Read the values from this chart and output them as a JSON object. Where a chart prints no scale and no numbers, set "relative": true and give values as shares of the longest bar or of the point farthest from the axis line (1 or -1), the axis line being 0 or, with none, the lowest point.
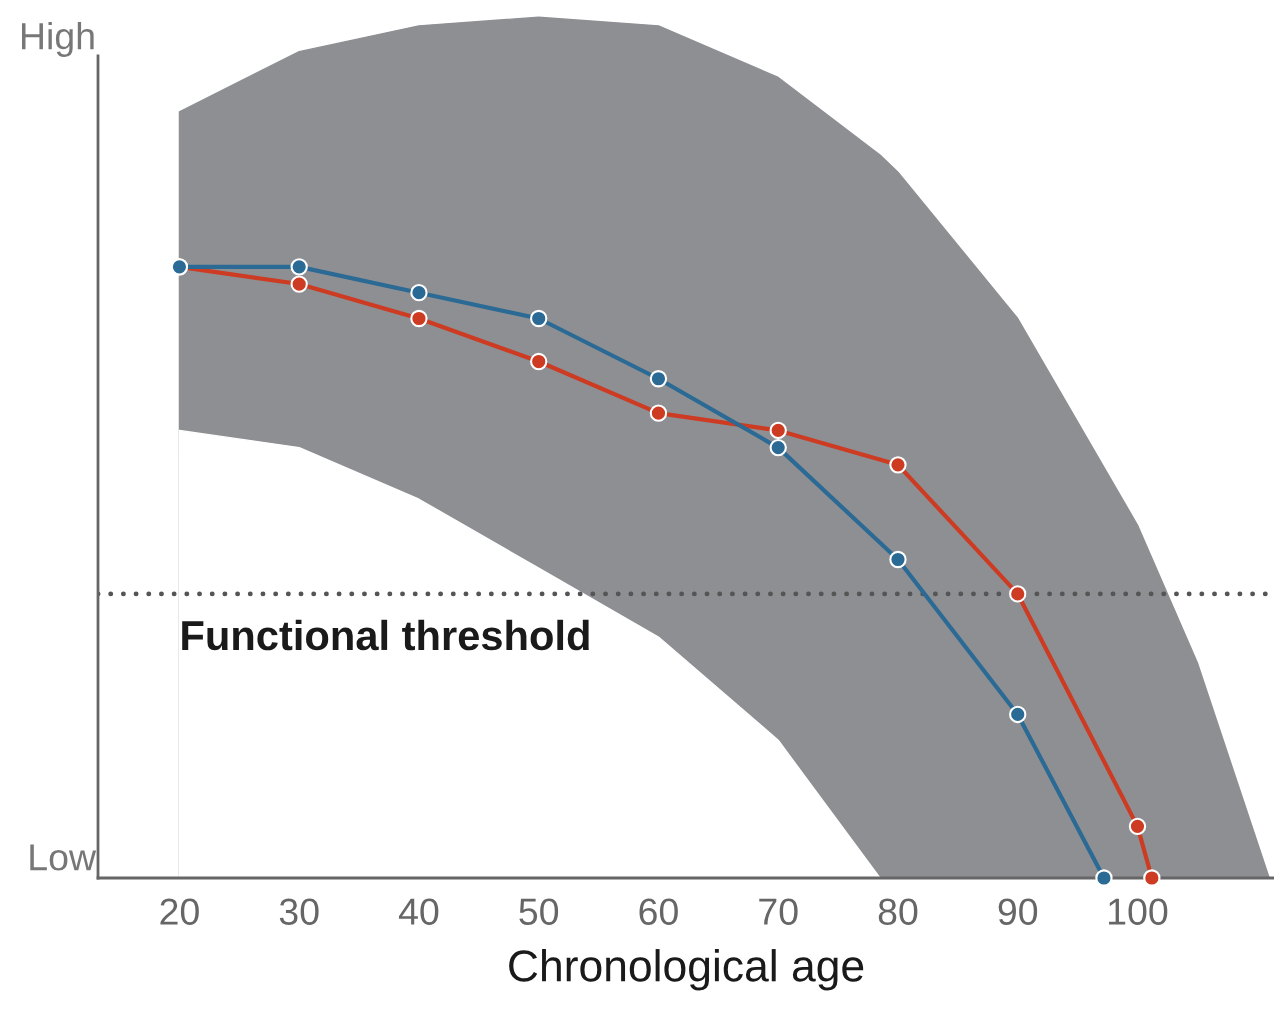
{
  "chart_data": {
    "type": "line",
    "relative": true,
    "xlabel": "Chronological age",
    "xlim": [
      13.2,
      111.4
    ],
    "xticks": [
      20,
      30,
      40,
      50,
      60,
      70,
      80,
      90,
      100
    ],
    "annotations": [
      "High",
      "Low"
    ],
    "line_style": "solid",
    "grid": false,
    "legend": false,
    "ref_lines": [
      {
        "axis": "y",
        "value": 0.33,
        "label": "Functional threshold",
        "color": "#555555",
        "line_style": "dotted"
      }
    ],
    "series": [
      {
        "type": "area",
        "color": "#8e8f93",
        "x": [
          20,
          30,
          40,
          50,
          60,
          70,
          78.5,
          80,
          90,
          100,
          105,
          111
        ],
        "values": [
          0.89,
          0.96,
          0.99,
          1.0,
          0.99,
          0.93,
          0.84,
          0.82,
          0.65,
          0.41,
          0.25,
          0
        ]
      },
      {
        "type": "area",
        "color": "#ffffff",
        "x": [
          20,
          30,
          40,
          50,
          60,
          70,
          78.5
        ],
        "values": [
          0.52,
          0.5,
          0.44,
          0.36,
          0.28,
          0.16,
          0
        ]
      },
      {
        "color": "#cc3b22",
        "marker": "circle",
        "x": [
          20,
          30,
          40,
          50,
          60,
          70,
          80,
          90,
          100,
          101.2
        ],
        "values": [
          0.71,
          0.69,
          0.65,
          0.6,
          0.54,
          0.52,
          0.48,
          0.33,
          0.06,
          0
        ]
      },
      {
        "color": "#2a6a94",
        "marker": "circle",
        "x": [
          20,
          30,
          40,
          50,
          60,
          70,
          80,
          90,
          97.2
        ],
        "values": [
          0.71,
          0.71,
          0.68,
          0.65,
          0.58,
          0.5,
          0.37,
          0.19,
          0
        ]
      }
    ]
  }
}
